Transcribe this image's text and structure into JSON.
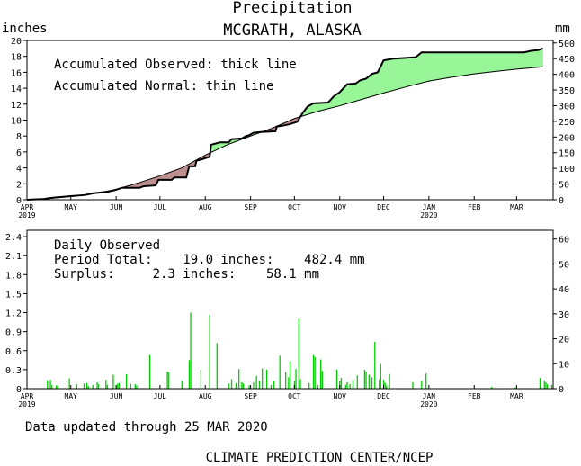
{
  "header": {
    "title": "Precipitation",
    "location": "MCGRATH, ALASKA",
    "left_unit": "inches",
    "right_unit": "mm"
  },
  "footer": {
    "updated": "Data updated through 25 MAR 2020",
    "credit": "CLIMATE PREDICTION CENTER/NCEP"
  },
  "colors": {
    "surplus_fill": "#98f598",
    "deficit_fill": "#bc8f8f",
    "daily_bar": "#00cc00",
    "axis": "#000000"
  },
  "chart_data": [
    {
      "type": "area",
      "panel": "accumulated",
      "legend": [
        "Accumulated Observed: thick line",
        "Accumulated Normal: thin line"
      ],
      "x_unit": "days since Apr 1 2019",
      "xlim": [
        0,
        360
      ],
      "ylim": [
        0,
        20
      ],
      "y_ticks": [
        0,
        2,
        4,
        6,
        8,
        10,
        12,
        14,
        16,
        18,
        20
      ],
      "y2_label": "mm",
      "y2_ticks": [
        0,
        50,
        100,
        150,
        200,
        250,
        300,
        350,
        400,
        450,
        500
      ],
      "x_ticks": [
        {
          "day": 0,
          "label": "APR",
          "year": "2019"
        },
        {
          "day": 30,
          "label": "MAY",
          "year": ""
        },
        {
          "day": 61,
          "label": "JUN",
          "year": ""
        },
        {
          "day": 91,
          "label": "JUL",
          "year": ""
        },
        {
          "day": 122,
          "label": "AUG",
          "year": ""
        },
        {
          "day": 153,
          "label": "SEP",
          "year": ""
        },
        {
          "day": 183,
          "label": "OCT",
          "year": ""
        },
        {
          "day": 214,
          "label": "NOV",
          "year": ""
        },
        {
          "day": 244,
          "label": "DEC",
          "year": ""
        },
        {
          "day": 275,
          "label": "JAN",
          "year": "2020"
        },
        {
          "day": 306,
          "label": "FEB",
          "year": ""
        },
        {
          "day": 335,
          "label": "MAR",
          "year": ""
        }
      ],
      "series": [
        {
          "name": "Accumulated Observed",
          "points": [
            [
              0,
              0
            ],
            [
              12,
              0.1
            ],
            [
              15,
              0.2
            ],
            [
              20,
              0.3
            ],
            [
              30,
              0.45
            ],
            [
              40,
              0.6
            ],
            [
              45,
              0.8
            ],
            [
              55,
              1.0
            ],
            [
              60,
              1.2
            ],
            [
              65,
              1.5
            ],
            [
              77,
              1.5
            ],
            [
              80,
              1.7
            ],
            [
              88,
              1.8
            ],
            [
              90,
              2.5
            ],
            [
              99,
              2.5
            ],
            [
              101,
              2.8
            ],
            [
              109,
              2.8
            ],
            [
              111,
              4.2
            ],
            [
              115,
              4.2
            ],
            [
              116,
              4.9
            ],
            [
              120,
              5.1
            ],
            [
              125,
              5.4
            ],
            [
              126,
              6.9
            ],
            [
              132,
              7.2
            ],
            [
              138,
              7.2
            ],
            [
              140,
              7.6
            ],
            [
              147,
              7.7
            ],
            [
              150,
              8.0
            ],
            [
              152,
              8.1
            ],
            [
              155,
              8.4
            ],
            [
              160,
              8.5
            ],
            [
              170,
              8.6
            ],
            [
              171,
              9.2
            ],
            [
              175,
              9.3
            ],
            [
              180,
              9.5
            ],
            [
              185,
              9.8
            ],
            [
              189,
              11.0
            ],
            [
              192,
              11.7
            ],
            [
              196,
              12.1
            ],
            [
              206,
              12.2
            ],
            [
              210,
              13.0
            ],
            [
              214,
              13.5
            ],
            [
              219,
              14.5
            ],
            [
              225,
              14.6
            ],
            [
              228,
              15.0
            ],
            [
              232,
              15.2
            ],
            [
              236,
              15.8
            ],
            [
              240,
              16.0
            ],
            [
              244,
              17.5
            ],
            [
              250,
              17.7
            ],
            [
              266,
              17.9
            ],
            [
              270,
              18.5
            ],
            [
              280,
              18.5
            ],
            [
              340,
              18.5
            ],
            [
              345,
              18.7
            ],
            [
              350,
              18.8
            ],
            [
              353,
              19.0
            ]
          ]
        },
        {
          "name": "Accumulated Normal",
          "points": [
            [
              0,
              0
            ],
            [
              15,
              0.15
            ],
            [
              30,
              0.4
            ],
            [
              45,
              0.75
            ],
            [
              61,
              1.3
            ],
            [
              76,
              2.1
            ],
            [
              91,
              3.0
            ],
            [
              106,
              4.0
            ],
            [
              122,
              5.6
            ],
            [
              137,
              6.9
            ],
            [
              153,
              8.0
            ],
            [
              168,
              9.0
            ],
            [
              183,
              10.2
            ],
            [
              199,
              11.1
            ],
            [
              214,
              11.8
            ],
            [
              229,
              12.6
            ],
            [
              244,
              13.4
            ],
            [
              260,
              14.2
            ],
            [
              275,
              14.9
            ],
            [
              291,
              15.4
            ],
            [
              306,
              15.8
            ],
            [
              320,
              16.1
            ],
            [
              335,
              16.4
            ],
            [
              353,
              16.7
            ]
          ]
        }
      ]
    },
    {
      "type": "bar",
      "panel": "daily",
      "annotations": {
        "label": "Daily Observed",
        "period_total": "Period Total:    19.0 inches:    482.4 mm",
        "surplus": "Surplus:     2.3 inches:    58.1 mm"
      },
      "xlim": [
        0,
        360
      ],
      "ylim": [
        0,
        2.5
      ],
      "y_ticks": [
        0,
        0.3,
        0.6,
        0.9,
        1.2,
        1.5,
        1.8,
        2.1,
        2.4
      ],
      "y2_ticks": [
        0,
        10,
        20,
        30,
        40,
        50,
        60
      ],
      "x": [
        14,
        16,
        17,
        20,
        21,
        29,
        34,
        39,
        41,
        42,
        45,
        48,
        49,
        54,
        55,
        59,
        61,
        62,
        63,
        68,
        71,
        74,
        75,
        84,
        96,
        97,
        106,
        111,
        112,
        119,
        125,
        130,
        138,
        140,
        143,
        145,
        147,
        148,
        152,
        155,
        157,
        159,
        161,
        164,
        167,
        169,
        173,
        177,
        179,
        180,
        183,
        184,
        186,
        187,
        193,
        196,
        197,
        199,
        201,
        202,
        212,
        214,
        215,
        218,
        219,
        221,
        223,
        226,
        231,
        232,
        234,
        236,
        238,
        241,
        242,
        244,
        245,
        246,
        248,
        264,
        270,
        273,
        318,
        334,
        351,
        354,
        355,
        356,
        359
      ],
      "values": [
        0.13,
        0.14,
        0.06,
        0.05,
        0.05,
        0.16,
        0.07,
        0.08,
        0.09,
        0.04,
        0.06,
        0.1,
        0.07,
        0.14,
        0.06,
        0.22,
        0.05,
        0.08,
        0.09,
        0.23,
        0.07,
        0.07,
        0.05,
        0.53,
        0.27,
        0.26,
        0.12,
        0.45,
        1.2,
        0.3,
        1.17,
        0.72,
        0.08,
        0.15,
        0.09,
        0.31,
        0.1,
        0.08,
        0.05,
        0.1,
        0.2,
        0.12,
        0.32,
        0.3,
        0.06,
        0.12,
        0.52,
        0.26,
        0.18,
        0.43,
        0.12,
        0.31,
        1.1,
        0.15,
        0.09,
        0.53,
        0.5,
        0.06,
        0.46,
        0.28,
        0.3,
        0.12,
        0.17,
        0.06,
        0.1,
        0.07,
        0.14,
        0.21,
        0.3,
        0.27,
        0.22,
        0.18,
        0.74,
        0.14,
        0.39,
        0.14,
        0.09,
        0.05,
        0.23,
        0.1,
        0.12,
        0.24,
        0.03,
        0.02,
        0.17,
        0.13,
        0.1,
        0.07,
        0.06
      ]
    }
  ]
}
